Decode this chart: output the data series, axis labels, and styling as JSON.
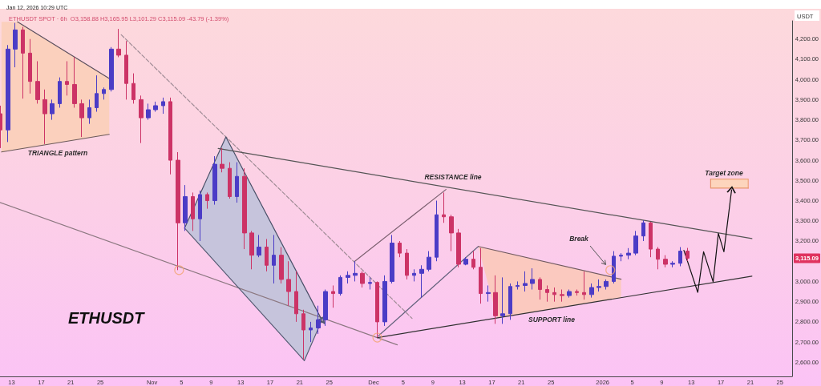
{
  "chart_data": {
    "type": "candlestick",
    "title": "ETHUSDT SPOT · 6h  O3,158.88 H3,165.95 L3,101.29 C3,115.09 -43.79 (-1.39%)",
    "subtitle": "Jan 12, 2026 10:29 UTC",
    "ylabel": "USDT",
    "annotations": [
      "ETHUSDT",
      "TRIANGLE pattern",
      "RESISTANCE line",
      "SUPPORT line",
      "Break",
      "Target zone",
      {
        "text": "3,115.09",
        "y": 3115.09
      }
    ],
    "x": [
      "2025-10-11T12:00",
      "2025-10-12T12:00",
      "2025-10-13T12:00",
      "2025-10-14T12:00",
      "2025-10-15T12:00",
      "2025-10-16T12:00",
      "2025-10-17T12:00",
      "2025-10-18T12:00",
      "2025-10-19T12:00",
      "2025-10-20T12:00",
      "2025-10-21T12:00",
      "2025-10-22T12:00",
      "2025-10-23T12:00",
      "2025-10-24T12:00",
      "2025-10-25T12:00",
      "2025-10-26T12:00",
      "2025-10-27T12:00",
      "2025-10-28T12:00",
      "2025-10-29T12:00",
      "2025-10-30T12:00",
      "2025-10-31T12:00",
      "2025-11-01T12:00",
      "2025-11-02T12:00",
      "2025-11-03T12:00",
      "2025-11-04T12:00",
      "2025-11-05T12:00",
      "2025-11-06T12:00",
      "2025-11-07T12:00",
      "2025-11-08T12:00",
      "2025-11-09T12:00",
      "2025-11-10T12:00",
      "2025-11-11T12:00",
      "2025-11-12T12:00",
      "2025-11-13T12:00",
      "2025-11-14T12:00",
      "2025-11-15T12:00",
      "2025-11-16T12:00",
      "2025-11-17T12:00",
      "2025-11-18T12:00",
      "2025-11-19T12:00",
      "2025-11-20T12:00",
      "2025-11-21T12:00",
      "2025-11-22T12:00",
      "2025-11-23T12:00",
      "2025-11-24T12:00",
      "2025-11-25T12:00",
      "2025-11-26T12:00",
      "2025-11-27T12:00",
      "2025-11-28T12:00",
      "2025-11-29T12:00",
      "2025-11-30T12:00",
      "2025-12-01T12:00",
      "2025-12-02T12:00",
      "2025-12-03T12:00",
      "2025-12-04T12:00",
      "2025-12-05T12:00",
      "2025-12-06T12:00",
      "2025-12-07T12:00",
      "2025-12-08T12:00",
      "2025-12-09T12:00",
      "2025-12-10T12:00",
      "2025-12-11T12:00",
      "2025-12-12T12:00",
      "2025-12-13T12:00",
      "2025-12-14T12:00",
      "2025-12-15T12:00",
      "2025-12-16T12:00",
      "2025-12-17T12:00",
      "2025-12-18T12:00",
      "2025-12-19T12:00",
      "2025-12-20T12:00",
      "2025-12-21T12:00",
      "2025-12-22T12:00",
      "2025-12-23T12:00",
      "2025-12-24T12:00",
      "2025-12-25T12:00",
      "2025-12-26T12:00",
      "2025-12-27T12:00",
      "2025-12-28T12:00",
      "2025-12-29T12:00",
      "2025-12-30T12:00",
      "2025-12-31T12:00",
      "2026-01-01T12:00",
      "2026-01-02T12:00",
      "2026-01-03T12:00",
      "2026-01-04T12:00",
      "2026-01-05T12:00",
      "2026-01-06T12:00",
      "2026-01-07T12:00",
      "2026-01-08T12:00",
      "2026-01-09T12:00",
      "2026-01-10T12:00",
      "2026-01-11T12:00",
      "2026-01-12T12:00"
    ],
    "ohlc": [
      [
        3830,
        3870,
        3660,
        3750
      ],
      [
        3750,
        4170,
        3690,
        4150
      ],
      [
        4150,
        4280,
        4060,
        4245
      ],
      [
        4245,
        4260,
        3905,
        4130
      ],
      [
        4130,
        4200,
        3930,
        3990
      ],
      [
        3990,
        4090,
        3880,
        3900
      ],
      [
        3900,
        3950,
        3680,
        3830
      ],
      [
        3830,
        3900,
        3800,
        3880
      ],
      [
        3880,
        4010,
        3860,
        3990
      ],
      [
        3990,
        4090,
        3920,
        3975
      ],
      [
        3975,
        4110,
        3860,
        3880
      ],
      [
        3880,
        3900,
        3715,
        3810
      ],
      [
        3810,
        3900,
        3780,
        3860
      ],
      [
        3860,
        4020,
        3840,
        3930
      ],
      [
        3930,
        3960,
        3900,
        3950
      ],
      [
        3950,
        4160,
        3940,
        4150
      ],
      [
        4150,
        4250,
        4110,
        4120
      ],
      [
        4120,
        4190,
        3900,
        3980
      ],
      [
        3980,
        4030,
        3880,
        3900
      ],
      [
        3900,
        3920,
        3685,
        3810
      ],
      [
        3810,
        3880,
        3800,
        3850
      ],
      [
        3850,
        3890,
        3840,
        3870
      ],
      [
        3870,
        3910,
        3830,
        3890
      ],
      [
        3890,
        3910,
        3530,
        3600
      ],
      [
        3600,
        3640,
        3056,
        3290
      ],
      [
        3290,
        3477,
        3250,
        3420
      ],
      [
        3420,
        3440,
        3250,
        3310
      ],
      [
        3310,
        3450,
        3200,
        3430
      ],
      [
        3430,
        3440,
        3360,
        3400
      ],
      [
        3400,
        3620,
        3380,
        3580
      ],
      [
        3580,
        3660,
        3540,
        3560
      ],
      [
        3560,
        3590,
        3410,
        3420
      ],
      [
        3420,
        3590,
        3390,
        3520
      ],
      [
        3520,
        3560,
        3160,
        3240
      ],
      [
        3240,
        3250,
        3060,
        3130
      ],
      [
        3130,
        3230,
        3120,
        3170
      ],
      [
        3170,
        3210,
        3050,
        3080
      ],
      [
        3080,
        3230,
        2990,
        3130
      ],
      [
        3130,
        3170,
        2990,
        3010
      ],
      [
        3010,
        3100,
        2880,
        2950
      ],
      [
        2950,
        3050,
        2800,
        2840
      ],
      [
        2840,
        2860,
        2615,
        2760
      ],
      [
        2760,
        2800,
        2700,
        2770
      ],
      [
        2770,
        2880,
        2740,
        2810
      ],
      [
        2810,
        2960,
        2780,
        2950
      ],
      [
        2950,
        2980,
        2870,
        2940
      ],
      [
        2940,
        3030,
        2930,
        3020
      ],
      [
        3020,
        3050,
        2990,
        3030
      ],
      [
        3030,
        3100,
        3000,
        3040
      ],
      [
        3040,
        3050,
        2970,
        2990
      ],
      [
        2990,
        3020,
        2960,
        2995
      ],
      [
        2995,
        3000,
        2722,
        2800
      ],
      [
        2800,
        3030,
        2780,
        3000
      ],
      [
        3000,
        3230,
        2990,
        3190
      ],
      [
        3190,
        3200,
        3120,
        3140
      ],
      [
        3140,
        3160,
        3010,
        3030
      ],
      [
        3030,
        3060,
        3000,
        3040
      ],
      [
        3040,
        3080,
        2920,
        3060
      ],
      [
        3060,
        3150,
        3050,
        3120
      ],
      [
        3120,
        3400,
        3100,
        3330
      ],
      [
        3330,
        3440,
        3290,
        3320
      ],
      [
        3320,
        3330,
        3150,
        3240
      ],
      [
        3240,
        3260,
        3070,
        3085
      ],
      [
        3085,
        3120,
        3080,
        3110
      ],
      [
        3110,
        3150,
        3060,
        3070
      ],
      [
        3070,
        3165,
        2890,
        2940
      ],
      [
        2940,
        2980,
        2900,
        2945
      ],
      [
        2945,
        3030,
        2790,
        2830
      ],
      [
        2830,
        3020,
        2790,
        2840
      ],
      [
        2840,
        2990,
        2810,
        2975
      ],
      [
        2975,
        3000,
        2960,
        2980
      ],
      [
        2980,
        3050,
        2950,
        2990
      ],
      [
        2990,
        3065,
        2960,
        3010
      ],
      [
        3010,
        3020,
        2910,
        2960
      ],
      [
        2960,
        2980,
        2900,
        2945
      ],
      [
        2945,
        2970,
        2900,
        2935
      ],
      [
        2935,
        2960,
        2900,
        2930
      ],
      [
        2930,
        2960,
        2920,
        2950
      ],
      [
        2950,
        2960,
        2930,
        2945
      ],
      [
        2945,
        3050,
        2910,
        2935
      ],
      [
        2935,
        2990,
        2920,
        2970
      ],
      [
        2970,
        3010,
        2950,
        2975
      ],
      [
        2975,
        3010,
        2960,
        3000
      ],
      [
        3000,
        3150,
        2990,
        3125
      ],
      [
        3125,
        3140,
        3100,
        3130
      ],
      [
        3130,
        3165,
        3110,
        3140
      ],
      [
        3140,
        3250,
        3130,
        3225
      ],
      [
        3225,
        3302,
        3200,
        3290
      ],
      [
        3290,
        3295,
        3120,
        3160
      ],
      [
        3160,
        3170,
        3060,
        3110
      ],
      [
        3110,
        3130,
        3070,
        3085
      ],
      [
        3085,
        3100,
        3070,
        3090
      ],
      [
        3090,
        3170,
        3075,
        3150
      ],
      [
        3150,
        3166,
        3101,
        3115.09
      ]
    ],
    "colors": [
      "#cc3366",
      "#4b3cc6",
      "#4b3cc6",
      "#cc3366",
      "#cc3366",
      "#cc3366",
      "#cc3366",
      "#4b3cc6",
      "#4b3cc6",
      "#cc3366",
      "#cc3366",
      "#cc3366",
      "#4b3cc6",
      "#4b3cc6",
      "#4b3cc6",
      "#4b3cc6",
      "#cc3366",
      "#cc3366",
      "#cc3366",
      "#cc3366",
      "#4b3cc6",
      "#4b3cc6",
      "#4b3cc6",
      "#cc3366",
      "#cc3366",
      "#4b3cc6",
      "#cc3366",
      "#4b3cc6",
      "#cc3366",
      "#4b3cc6",
      "#cc3366",
      "#cc3366",
      "#4b3cc6",
      "#cc3366",
      "#cc3366",
      "#4b3cc6",
      "#cc3366",
      "#4b3cc6",
      "#cc3366",
      "#cc3366",
      "#cc3366",
      "#cc3366",
      "#4b3cc6",
      "#4b3cc6",
      "#4b3cc6",
      "#cc3366",
      "#4b3cc6",
      "#4b3cc6",
      "#4b3cc6",
      "#cc3366",
      "#4b3cc6",
      "#cc3366",
      "#4b3cc6",
      "#4b3cc6",
      "#cc3366",
      "#cc3366",
      "#4b3cc6",
      "#4b3cc6",
      "#4b3cc6",
      "#4b3cc6",
      "#cc3366",
      "#cc3366",
      "#cc3366",
      "#4b3cc6",
      "#cc3366",
      "#cc3366",
      "#4b3cc6",
      "#cc3366",
      "#4b3cc6",
      "#4b3cc6",
      "#4b3cc6",
      "#4b3cc6",
      "#4b3cc6",
      "#cc3366",
      "#cc3366",
      "#cc3366",
      "#cc3366",
      "#4b3cc6",
      "#cc3366",
      "#cc3366",
      "#4b3cc6",
      "#4b3cc6",
      "#4b3cc6",
      "#4b3cc6",
      "#4b3cc6",
      "#4b3cc6",
      "#4b3cc6",
      "#4b3cc6",
      "#cc3366",
      "#cc3366",
      "#cc3366",
      "#4b3cc6",
      "#4b3cc6",
      "#cc3366"
    ],
    "series": [
      {
        "type": "line",
        "x": [
          "2025-10-11T15:00",
          "2025-10-13T19:00",
          "2025-10-26T05:00"
        ],
        "values": [
          null,
          null,
          null
        ],
        "lower": [
          3641,
          3654,
          3728
        ],
        "upper": [
          4285,
          4285,
          4005
        ],
        "color": "#fbd0bd"
      },
      {
        "type": "line",
        "x": [
          "2025-10-13T19:00",
          "2025-10-26T05:00"
        ],
        "values": [
          4285,
          4005
        ],
        "color": "#5b4f5e"
      },
      {
        "type": "line",
        "x": [
          "2025-10-11T15:00",
          "2025-10-26T05:00"
        ],
        "values": [
          3641,
          3728
        ],
        "color": "#6b5a5a"
      },
      {
        "type": "line",
        "x": [
          "2025-10-27T20:00",
          "2025-12-06T05:00"
        ],
        "values": [
          4221,
          2817
        ],
        "color": "#a08c96",
        "line_style": "dashed"
      },
      {
        "type": "line",
        "x": [
          "2025-10-11T10:10",
          "2025-12-04T05:00"
        ],
        "values": [
          3391,
          2686
        ],
        "color": "#8c7880"
      },
      {
        "type": "line",
        "x": [
          "2025-11-05T10:00",
          "2025-11-11T00:00",
          "2025-11-21T15:00",
          "2025-11-24T00:00"
        ],
        "values": [
          null,
          null,
          null,
          null
        ],
        "lower": [
          3264,
          3039,
          2608,
          2809
        ],
        "upper": [
          3264,
          3715,
          2974,
          2809
        ],
        "color": "#c6c4dc"
      },
      {
        "type": "line",
        "x": [
          "2025-11-05T10:00",
          "2025-11-11T00:00",
          "2025-11-24T00:00"
        ],
        "values": [
          3264,
          3715,
          2809
        ],
        "color": "#4a5068"
      },
      {
        "type": "line",
        "x": [
          "2025-11-05T10:00",
          "2025-11-21T15:00",
          "2025-11-24T00:00"
        ],
        "values": [
          3264,
          2608,
          2809
        ],
        "color": "#565c74"
      },
      {
        "type": "line",
        "x": [
          "2025-11-09T23:00",
          "2026-01-21T05:00"
        ],
        "values": [
          3658,
          3212
        ],
        "color": "#555555"
      },
      {
        "type": "line",
        "x": [
          "2025-11-28T10:00",
          "2025-12-10T19:00"
        ],
        "values": [
          3099,
          3455
        ],
        "color": "#7c6070"
      },
      {
        "type": "line",
        "x": [
          "2025-12-01T16:00",
          "2025-12-15T04:00"
        ],
        "values": [
          2731,
          3173
        ],
        "color": "#66647e"
      },
      {
        "type": "line",
        "x": [
          "2025-12-15T04:00",
          "2025-12-17T17:00",
          "2026-01-03T12:00"
        ],
        "values": [
          null,
          null,
          null
        ],
        "lower": [
          3173,
          2819,
          2920
        ],
        "upper": [
          3173,
          3152,
          3011
        ],
        "color": "#fbc9bf"
      },
      {
        "type": "line",
        "x": [
          "2025-12-15T04:00",
          "2026-01-03T12:00"
        ],
        "values": [
          3173,
          3011
        ],
        "color": "#705a60"
      },
      {
        "type": "line",
        "x": [
          "2025-12-01T12:00",
          "2026-01-21T05:00"
        ],
        "values": [
          2722,
          3026
        ],
        "color": "#303030"
      },
      {
        "type": "line",
        "x": [
          "2026-01-15T15:00",
          "2026-01-20T17:00"
        ],
        "values": [
          null,
          null
        ],
        "lower": [
          3462,
          3462
        ],
        "upper": [
          3507,
          3507
        ],
        "color": "#fdd5bd"
      },
      {
        "type": "line",
        "x": [
          "2026-01-15T15:00",
          "2026-01-20T17:00",
          "2026-01-20T17:00"
        ],
        "values": [
          3507,
          3507,
          3462
        ],
        "color": "#eea27c"
      },
      {
        "type": "line",
        "x": [
          "2026-01-15T15:00",
          "2026-01-15T15:00",
          "2026-01-20T17:00"
        ],
        "values": [
          3507,
          3462,
          3462
        ],
        "color": "#e8966e"
      },
      {
        "type": "line",
        "x": [
          "2026-01-12T00:00",
          "2026-01-13T21:00",
          "2026-01-14T16:00",
          "2026-01-15T23:00",
          "2026-01-16T16:00",
          "2026-01-17T10:00",
          "2026-01-18T11:00"
        ],
        "values": [
          3154,
          2946,
          3147,
          2998,
          3238,
          3147,
          3453
        ],
        "color": "#111111"
      },
      {
        "type": "scatter",
        "x": [
          "2025-11-04T16:00",
          "2025-12-01T12:00",
          "2026-01-02T01:00"
        ],
        "values": [
          3056,
          2722,
          3056
        ],
        "color": "#f2a46e",
        "marker": "circle"
      }
    ],
    "xlim": [
      "2025-10-11T10:10",
      "2026-01-26T15:10"
    ],
    "ylim": [
      2530,
      4290
    ],
    "xticks": [
      {
        "value": "2025-10-13",
        "label": "13"
      },
      {
        "value": "2025-10-17",
        "label": "17"
      },
      {
        "value": "2025-10-21",
        "label": "21"
      },
      {
        "value": "2025-10-25",
        "label": "25"
      },
      {
        "value": "2025-11-01",
        "label": "Nov"
      },
      {
        "value": "2025-11-05",
        "label": "5"
      },
      {
        "value": "2025-11-09",
        "label": "9"
      },
      {
        "value": "2025-11-13",
        "label": "13"
      },
      {
        "value": "2025-11-17",
        "label": "17"
      },
      {
        "value": "2025-11-21",
        "label": "21"
      },
      {
        "value": "2025-11-25",
        "label": "25"
      },
      {
        "value": "2025-12-01",
        "label": "Dec"
      },
      {
        "value": "2025-12-05",
        "label": "5"
      },
      {
        "value": "2025-12-09",
        "label": "9"
      },
      {
        "value": "2025-12-13",
        "label": "13"
      },
      {
        "value": "2025-12-17",
        "label": "17"
      },
      {
        "value": "2025-12-21",
        "label": "21"
      },
      {
        "value": "2025-12-25",
        "label": "25"
      },
      {
        "value": "2026-01-01",
        "label": "2026"
      },
      {
        "value": "2026-01-05",
        "label": "5"
      },
      {
        "value": "2026-01-09",
        "label": "9"
      },
      {
        "value": "2026-01-13",
        "label": "13"
      },
      {
        "value": "2026-01-17",
        "label": "17"
      },
      {
        "value": "2026-01-21",
        "label": "21"
      },
      {
        "value": "2026-01-25",
        "label": "25"
      }
    ],
    "yticks": [
      {
        "value": 2600,
        "label": "2,600.00"
      },
      {
        "value": 2700,
        "label": "2,700.00"
      },
      {
        "value": 2800,
        "label": "2,800.00"
      },
      {
        "value": 2900,
        "label": "2,900.00"
      },
      {
        "value": 3000,
        "label": "3,000.00"
      },
      {
        "value": 3200,
        "label": "3,200.00"
      },
      {
        "value": 3300,
        "label": "3,300.00"
      },
      {
        "value": 3400,
        "label": "3,400.00"
      },
      {
        "value": 3500,
        "label": "3,500.00"
      },
      {
        "value": 3600,
        "label": "3,600.00"
      },
      {
        "value": 3700,
        "label": "3,700.00"
      },
      {
        "value": 3800,
        "label": "3,800.00"
      },
      {
        "value": 3900,
        "label": "3,900.00"
      },
      {
        "value": 4000,
        "label": "4,000.00"
      },
      {
        "value": 4100,
        "label": "4,100.00"
      },
      {
        "value": 4200,
        "label": "4,200.00"
      }
    ]
  }
}
